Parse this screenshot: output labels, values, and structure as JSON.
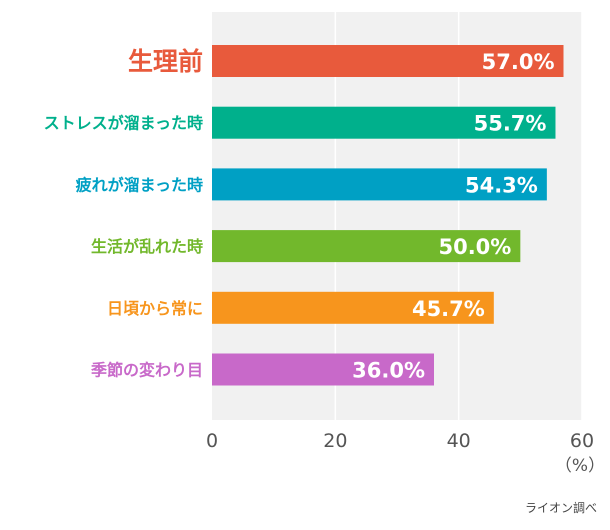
{
  "chart_data": {
    "type": "bar",
    "orientation": "horizontal",
    "categories": [
      "生理前",
      "ストレスが溜まった時",
      "疲れが溜まった時",
      "生活が乱れた時",
      "日頃から常に",
      "季節の変わり目"
    ],
    "values": [
      57.0,
      55.7,
      54.3,
      50.0,
      45.7,
      36.0
    ],
    "value_labels": [
      "57.0%",
      "55.7%",
      "54.3%",
      "50.0%",
      "45.7%",
      "36.0%"
    ],
    "colors": [
      "#e85a3c",
      "#00b08c",
      "#00a0c4",
      "#72b82c",
      "#f7951d",
      "#c869c9"
    ],
    "xlim": [
      0,
      60
    ],
    "xticks": [
      0,
      20,
      40,
      60
    ],
    "xticks_labels": [
      "0",
      "20",
      "40",
      "60"
    ],
    "unit_label": "（%）",
    "grid": true,
    "source_note": "ライオン調べ"
  }
}
